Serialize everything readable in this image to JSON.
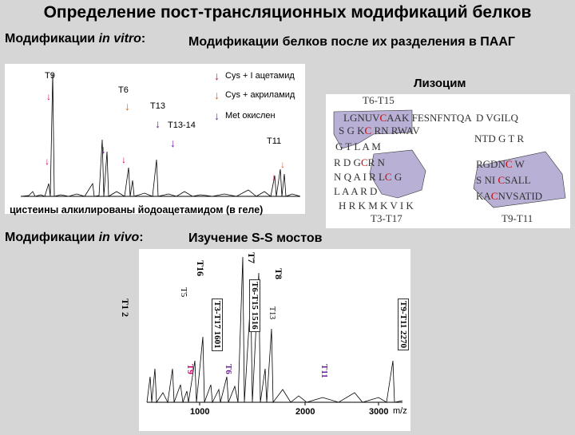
{
  "title": "Определение пост-трансляционных модификаций белков",
  "sections": {
    "in_vitro_prefix": "Модификации ",
    "in_vitro_em": "in vitro",
    "in_vitro_suffix": ":",
    "paag": "Модификации белков после их разделения в ПААГ",
    "in_vivo_prefix": "Модификации ",
    "in_vivo_em": "in vivo",
    "in_vivo_suffix": ":",
    "ss": "Изучение S-S мостов"
  },
  "spectrum1": {
    "peaks": {
      "t9": "T9",
      "t6": "T6",
      "t13": "T13",
      "t13_14": "T13-14",
      "t11": "T11"
    },
    "legend": [
      {
        "text": "Cys + I ацетамид",
        "color": "#cc0066"
      },
      {
        "text": "Cys + акриламид",
        "color": "#e06010"
      },
      {
        "text": "Met окислен",
        "color": "#7020a0"
      }
    ],
    "caption": "цистеины алкилированы йодоацетамидом (в геле)"
  },
  "lysozyme": {
    "title": "Лизоцим",
    "t6_t15": "T6-T15",
    "t3_t17": "T3-T17",
    "t9_t11": "T9-T11",
    "colors": {
      "box": "#b9b0d6",
      "cys": "#cc0000",
      "seq": "#555"
    }
  },
  "spectrum2": {
    "peaks": {
      "t12": "T1 2",
      "t16": "T16",
      "t15": "T5",
      "t3t17": "T3-T17 1601",
      "t7": "T7",
      "t6t15": "T6-T15 1516",
      "t13": "T13",
      "t18": "T8",
      "t9t11": "T9-T11 2270",
      "t9": "T9",
      "t6": "T6",
      "t11": "T11"
    },
    "axis": {
      "x1000": "1000",
      "x2000": "2000",
      "x3000": "3000",
      "unit": "m/z"
    }
  }
}
